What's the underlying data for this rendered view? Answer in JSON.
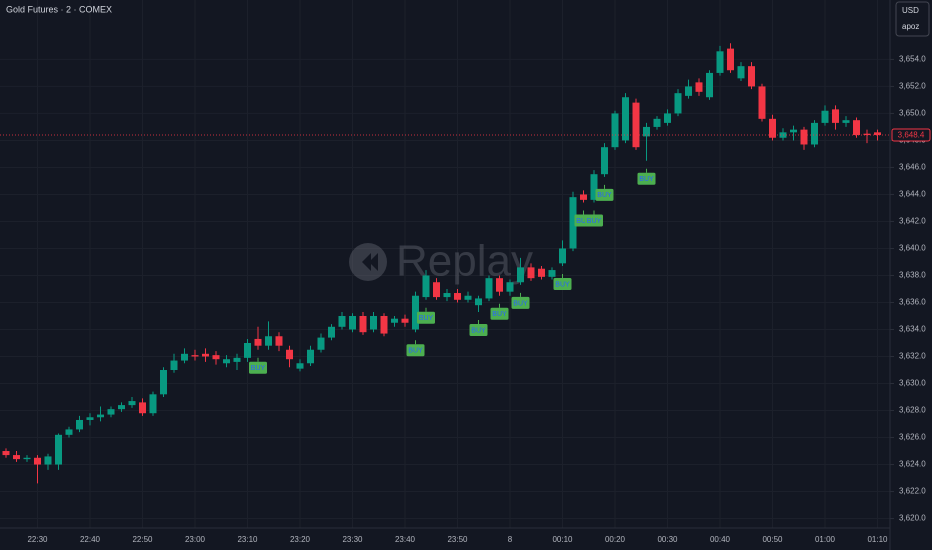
{
  "chart_data": {
    "type": "candlestick",
    "title": "Gold Futures · 2 · COMEX",
    "currency": "USD",
    "account": "apoz",
    "watermark": "Replay",
    "up_color": "#089981",
    "down_color": "#f23645",
    "grid": true,
    "categories": [
      null,
      null,
      null,
      "22:30",
      null,
      null,
      null,
      null,
      "22:40",
      null,
      null,
      null,
      null,
      "22:50",
      null,
      null,
      null,
      null,
      "23:00",
      null,
      null,
      null,
      null,
      "23:10",
      null,
      null,
      null,
      null,
      "23:20",
      null,
      null,
      null,
      null,
      "23:30",
      null,
      null,
      null,
      null,
      "23:40",
      null,
      null,
      null,
      null,
      "23:50",
      null,
      null,
      null,
      null,
      "8",
      null,
      null,
      null,
      null,
      "00:10",
      null,
      null,
      null,
      null,
      "00:20",
      null,
      null,
      null,
      null,
      "00:30",
      null,
      null,
      null,
      null,
      "00:40",
      null,
      null,
      null,
      null,
      "00:50",
      null,
      null,
      null,
      null,
      "01:00",
      null,
      null,
      null,
      null,
      "01:10"
    ],
    "open": [
      3625.0,
      3624.7,
      3624.4,
      3624.5,
      3624.0,
      3624.0,
      3626.2,
      3626.6,
      3627.3,
      3627.5,
      3627.7,
      3628.1,
      3628.4,
      3628.6,
      3627.8,
      3629.2,
      3631.0,
      3631.7,
      3632.1,
      3632.2,
      3632.1,
      3631.5,
      3631.6,
      3631.9,
      3633.3,
      3632.8,
      3633.5,
      3632.5,
      3631.1,
      3631.5,
      3632.5,
      3633.4,
      3634.2,
      3634.0,
      3635.0,
      3634.0,
      3635.0,
      3634.5,
      3634.8,
      3634.0,
      3636.4,
      3637.5,
      3636.4,
      3636.7,
      3636.2,
      3635.8,
      3636.3,
      3637.8,
      3636.8,
      3637.5,
      3638.6,
      3638.5,
      3637.9,
      3638.9,
      3640.0,
      3644.0,
      3643.6,
      3645.5,
      3647.5,
      3648.0,
      3650.8,
      3648.3,
      3649.0,
      3649.3,
      3650.0,
      3651.3,
      3652.3,
      3651.2,
      3653.0,
      3654.8,
      3652.6,
      3653.5,
      3652.0,
      3649.6,
      3648.2,
      3648.6,
      3648.8,
      3647.7,
      3649.3,
      3650.3,
      3649.3,
      3649.5,
      3648.5,
      3648.6
    ],
    "high": [
      3625.2,
      3625.0,
      3624.7,
      3624.7,
      3624.8,
      3626.3,
      3626.8,
      3627.6,
      3627.8,
      3628.3,
      3628.3,
      3628.6,
      3629.0,
      3628.9,
      3629.4,
      3631.2,
      3632.2,
      3632.6,
      3632.5,
      3632.6,
      3632.4,
      3632.1,
      3632.2,
      3633.3,
      3634.2,
      3634.6,
      3633.8,
      3632.8,
      3631.8,
      3632.8,
      3633.7,
      3634.4,
      3635.3,
      3635.2,
      3635.3,
      3635.3,
      3635.2,
      3635.0,
      3635.1,
      3636.8,
      3638.4,
      3637.8,
      3637.0,
      3637.0,
      3636.8,
      3636.5,
      3638.0,
      3638.0,
      3637.7,
      3639.3,
      3638.9,
      3638.7,
      3638.6,
      3640.6,
      3644.2,
      3644.3,
      3645.8,
      3647.8,
      3650.2,
      3651.5,
      3651.1,
      3649.3,
      3649.8,
      3650.3,
      3651.8,
      3652.5,
      3652.6,
      3653.2,
      3655.0,
      3655.2,
      3653.8,
      3653.8,
      3652.2,
      3649.9,
      3648.9,
      3649.1,
      3649.0,
      3649.5,
      3650.6,
      3650.6,
      3649.8,
      3649.7,
      3648.8,
      3648.8
    ],
    "low": [
      3624.5,
      3624.2,
      3624.2,
      3622.6,
      3623.6,
      3623.6,
      3626.0,
      3626.4,
      3626.9,
      3627.2,
      3627.5,
      3627.9,
      3628.2,
      3627.6,
      3627.6,
      3629.0,
      3630.8,
      3631.5,
      3631.7,
      3631.6,
      3631.4,
      3631.2,
      3631.0,
      3631.6,
      3632.5,
      3632.5,
      3632.4,
      3631.2,
      3630.9,
      3631.3,
      3632.3,
      3633.2,
      3634.0,
      3633.8,
      3633.6,
      3633.8,
      3633.5,
      3634.2,
      3634.2,
      3633.8,
      3636.2,
      3636.2,
      3636.1,
      3636.0,
      3636.0,
      3635.3,
      3636.1,
      3636.5,
      3636.5,
      3637.3,
      3637.6,
      3637.7,
      3637.7,
      3638.7,
      3639.8,
      3643.4,
      3643.4,
      3645.3,
      3647.3,
      3647.8,
      3647.3,
      3646.5,
      3648.8,
      3649.1,
      3649.8,
      3651.1,
      3651.3,
      3651.0,
      3652.8,
      3653.0,
      3652.4,
      3651.8,
      3649.4,
      3648.0,
      3648.0,
      3648.0,
      3647.3,
      3647.5,
      3649.1,
      3648.8,
      3649.0,
      3648.2,
      3647.8,
      3648.0
    ],
    "close": [
      3624.7,
      3624.4,
      3624.5,
      3624.0,
      3624.6,
      3626.2,
      3626.6,
      3627.3,
      3627.5,
      3627.7,
      3628.1,
      3628.4,
      3628.7,
      3627.8,
      3629.2,
      3631.0,
      3631.7,
      3632.2,
      3632.0,
      3632.0,
      3631.8,
      3631.8,
      3631.9,
      3633.0,
      3632.8,
      3633.5,
      3632.8,
      3631.8,
      3631.5,
      3632.5,
      3633.4,
      3634.2,
      3635.0,
      3635.0,
      3633.8,
      3635.0,
      3633.7,
      3634.8,
      3634.5,
      3636.5,
      3638.0,
      3636.4,
      3636.7,
      3636.2,
      3636.5,
      3636.3,
      3637.8,
      3636.8,
      3637.5,
      3638.6,
      3637.8,
      3637.9,
      3638.4,
      3640.0,
      3643.8,
      3643.6,
      3645.5,
      3647.5,
      3650.0,
      3651.2,
      3647.5,
      3649.0,
      3649.6,
      3650.0,
      3651.5,
      3652.0,
      3651.6,
      3653.0,
      3654.6,
      3653.2,
      3653.5,
      3652.0,
      3649.6,
      3648.2,
      3648.6,
      3648.8,
      3647.7,
      3649.3,
      3650.2,
      3649.3,
      3649.5,
      3648.4,
      3648.4,
      3648.4
    ],
    "signals": [
      {
        "at": 24,
        "label": "BUY"
      },
      {
        "at": 39,
        "label": "BUY"
      },
      {
        "at": 40,
        "label": "BUY"
      },
      {
        "at": 45,
        "label": "BUY"
      },
      {
        "at": 47,
        "label": "BUY"
      },
      {
        "at": 49,
        "label": "BUY"
      },
      {
        "at": 53,
        "label": "BUY"
      },
      {
        "at": 55,
        "label": "BUY"
      },
      {
        "at": 56,
        "label": "BUY"
      },
      {
        "at": 57,
        "label": "BUY"
      },
      {
        "at": 61,
        "label": "BUY"
      }
    ],
    "last_price": {
      "value": 3648.4,
      "label": "3,648.4"
    },
    "ylim": [
      3619.3,
      3658.4
    ],
    "yticks": [
      {
        "value": 3620,
        "label": "3,620.0"
      },
      {
        "value": 3622,
        "label": "3,622.0"
      },
      {
        "value": 3624,
        "label": "3,624.0"
      },
      {
        "value": 3626,
        "label": "3,626.0"
      },
      {
        "value": 3628,
        "label": "3,628.0"
      },
      {
        "value": 3630,
        "label": "3,630.0"
      },
      {
        "value": 3632,
        "label": "3,632.0"
      },
      {
        "value": 3634,
        "label": "3,634.0"
      },
      {
        "value": 3636,
        "label": "3,636.0"
      },
      {
        "value": 3638,
        "label": "3,638.0"
      },
      {
        "value": 3640,
        "label": "3,640.0"
      },
      {
        "value": 3642,
        "label": "3,642.0"
      },
      {
        "value": 3644,
        "label": "3,644.0"
      },
      {
        "value": 3646,
        "label": "3,646.0"
      },
      {
        "value": 3648,
        "label": "3,648.0"
      },
      {
        "value": 3650,
        "label": "3,650.0"
      },
      {
        "value": 3652,
        "label": "3,652.0"
      },
      {
        "value": 3654,
        "label": "3,654.0"
      }
    ]
  }
}
